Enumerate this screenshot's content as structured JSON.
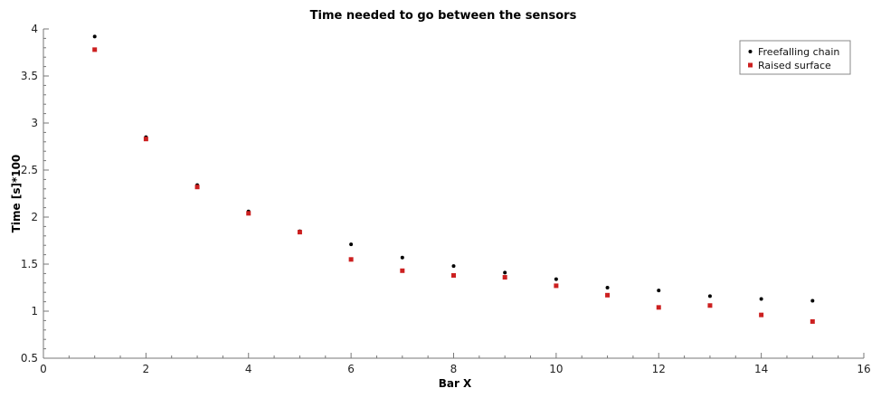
{
  "chart_data": {
    "type": "scatter",
    "title": "Time needed to go between the sensors",
    "xlabel": "Bar X",
    "ylabel": "Time [s]*100",
    "xlim": [
      0,
      16
    ],
    "ylim": [
      0.5,
      4
    ],
    "xticks": [
      0,
      2,
      4,
      6,
      8,
      10,
      12,
      14,
      16
    ],
    "yticks": [
      0.5,
      1,
      1.5,
      2,
      2.5,
      3,
      3.5,
      4
    ],
    "grid": false,
    "legend_position": "top-right",
    "x": [
      1,
      2,
      3,
      4,
      5,
      6,
      7,
      8,
      9,
      10,
      11,
      12,
      13,
      14,
      15
    ],
    "series": [
      {
        "name": "Freefalling chain",
        "color": "#000000",
        "marker": "circle",
        "values": [
          3.92,
          2.85,
          2.34,
          2.06,
          1.85,
          1.71,
          1.57,
          1.48,
          1.41,
          1.34,
          1.25,
          1.22,
          1.16,
          1.13,
          1.11
        ]
      },
      {
        "name": "Raised surface",
        "color": "#cc2020",
        "marker": "square",
        "values": [
          3.78,
          2.83,
          2.32,
          2.04,
          1.84,
          1.55,
          1.43,
          1.38,
          1.36,
          1.27,
          1.17,
          1.04,
          1.06,
          0.96,
          0.89
        ]
      }
    ]
  }
}
